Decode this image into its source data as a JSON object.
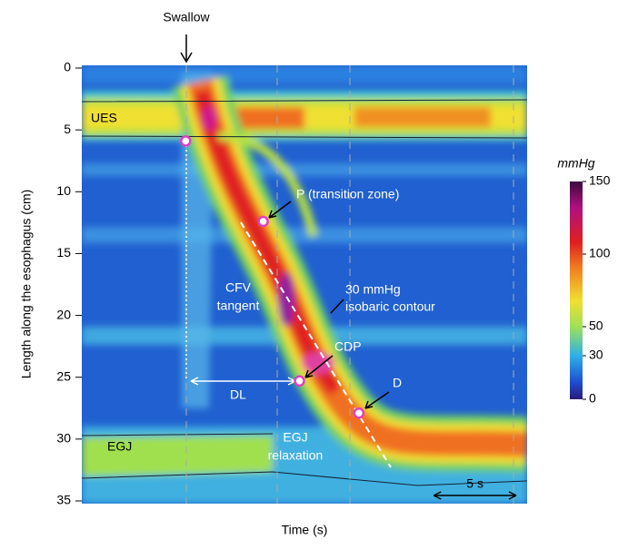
{
  "chart_data": {
    "type": "heatmap",
    "title": "Swallow",
    "xlabel": "Time (s)",
    "ylabel": "Length along the esophagus (cm)",
    "xlim": [
      0,
      27
    ],
    "ylim": [
      0,
      35
    ],
    "yticks": [
      0,
      5,
      10,
      15,
      20,
      25,
      30,
      35
    ],
    "colorbar": {
      "label": "mmHg",
      "lim": [
        0,
        150
      ],
      "ticks": [
        0,
        30,
        50,
        100,
        150
      ]
    },
    "points": {
      "x": [
        6.3,
        11,
        13.2,
        16.8
      ],
      "y": [
        5.9,
        12.4,
        25.3,
        27.9
      ],
      "color": "#e040c0"
    },
    "annotations": {
      "ues": "UES",
      "egj": "EGJ",
      "p": "P (transition zone)",
      "cfv": [
        "CFV",
        "tangent"
      ],
      "contour": [
        "30 mmHg",
        "isobaric contour"
      ],
      "cdp": "CDP",
      "d": "D",
      "dl": "DL",
      "relax": [
        "EGJ",
        "relaxation"
      ]
    },
    "scale_bar": {
      "label": "5 s",
      "length": 5
    }
  }
}
